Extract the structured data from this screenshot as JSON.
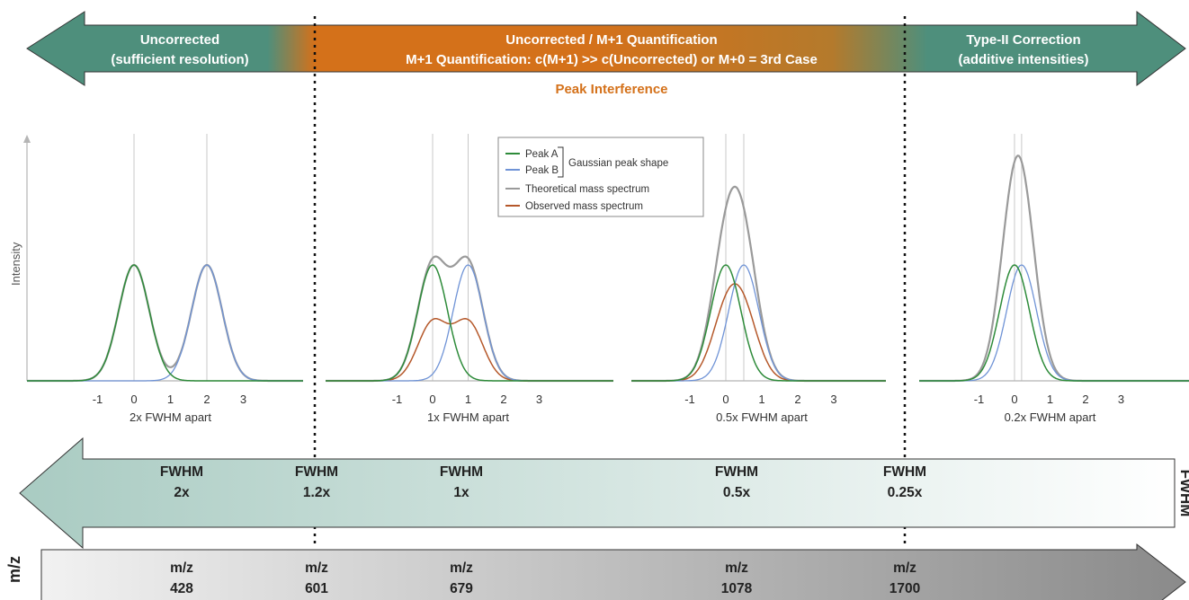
{
  "colors": {
    "green": "#4e8f7c",
    "orange": "#d4711a",
    "peak_interference_text": "#d4711a",
    "peak_a": "#2e8b3a",
    "peak_b": "#6f93d6",
    "theoretical": "#9a9a9a",
    "observed": "#b5582a"
  },
  "top_banner": {
    "left": {
      "line1": "Uncorrected",
      "line2": "(sufficient resolution)"
    },
    "center": {
      "line1": "Uncorrected / M+1 Quantification",
      "line2": "M+1 Quantification: c(M+1)  >> c(Uncorrected) or M+0 = 3rd Case"
    },
    "right": {
      "line1": "Type-II Correction",
      "line2": "(additive intensities)"
    },
    "peak_interference": "Peak Interference"
  },
  "y_axis_label": "Intensity",
  "legend": {
    "peak_a": "Peak A",
    "peak_b": "Peak B",
    "group_label": "Gaussian peak shape",
    "theoretical": "Theoretical mass spectrum",
    "observed": "Observed mass spectrum"
  },
  "panels": [
    {
      "caption": "2x FWHM apart",
      "ticks": [
        "-1",
        "0",
        "1",
        "2",
        "3"
      ]
    },
    {
      "caption": "1x FWHM apart",
      "ticks": [
        "-1",
        "0",
        "1",
        "2",
        "3"
      ]
    },
    {
      "caption": "0.5x FWHM apart",
      "ticks": [
        "-1",
        "0",
        "1",
        "2",
        "3"
      ]
    },
    {
      "caption": "0.2x FWHM apart",
      "ticks": [
        "-1",
        "0",
        "1",
        "2",
        "3"
      ]
    }
  ],
  "fwhm_arrow": {
    "side_label": "FWHM",
    "items": [
      {
        "title": "FWHM",
        "value": "2x"
      },
      {
        "title": "FWHM",
        "value": "1.2x"
      },
      {
        "title": "FWHM",
        "value": "1x"
      },
      {
        "title": "FWHM",
        "value": "0.5x"
      },
      {
        "title": "FWHM",
        "value": "0.25x"
      }
    ]
  },
  "mz_arrow": {
    "side_label": "m/z",
    "items": [
      {
        "title": "m/z",
        "value": "428"
      },
      {
        "title": "m/z",
        "value": "601"
      },
      {
        "title": "m/z",
        "value": "679"
      },
      {
        "title": "m/z",
        "value": "1078"
      },
      {
        "title": "m/z",
        "value": "1700"
      }
    ]
  }
}
